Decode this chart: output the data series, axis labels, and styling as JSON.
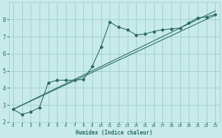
{
  "xlabel": "Humidex (Indice chaleur)",
  "ylabel": "",
  "bg_color": "#c8eaea",
  "grid_color": "#a0cccc",
  "line_color": "#2a6b62",
  "xlim": [
    -0.5,
    23.5
  ],
  "ylim": [
    2,
    9
  ],
  "xticks": [
    0,
    1,
    2,
    3,
    4,
    5,
    6,
    7,
    8,
    9,
    10,
    11,
    12,
    13,
    14,
    15,
    16,
    17,
    18,
    19,
    20,
    21,
    22,
    23
  ],
  "yticks": [
    2,
    3,
    4,
    5,
    6,
    7,
    8
  ],
  "line_straight1": {
    "x": [
      0,
      23
    ],
    "y": [
      2.75,
      8.25
    ]
  },
  "line_straight2": {
    "x": [
      0,
      23
    ],
    "y": [
      2.75,
      8.5
    ]
  },
  "line_irregular_x": [
    0,
    1,
    2,
    3,
    4,
    5,
    6,
    7,
    8,
    9,
    10,
    11,
    12,
    13,
    14,
    15,
    16,
    17,
    18,
    19,
    20,
    21,
    22,
    23
  ],
  "line_irregular_y": [
    2.75,
    2.45,
    2.6,
    2.85,
    4.3,
    4.45,
    4.45,
    4.45,
    4.5,
    5.25,
    6.4,
    7.85,
    7.55,
    7.4,
    7.1,
    7.15,
    7.3,
    7.4,
    7.45,
    7.5,
    7.8,
    8.1,
    8.15,
    8.3
  ]
}
